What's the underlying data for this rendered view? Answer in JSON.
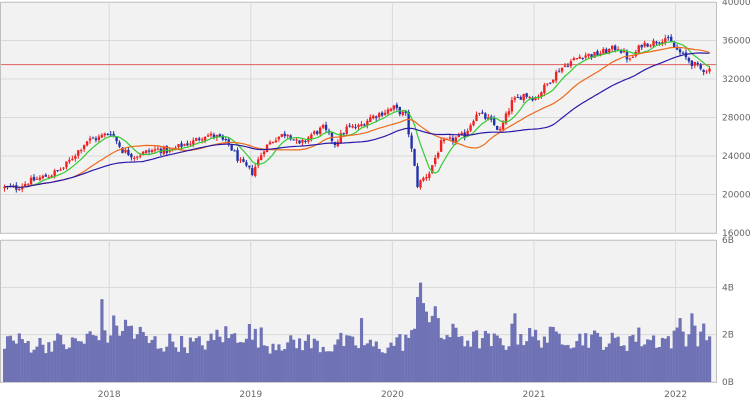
{
  "chart_data": [
    {
      "type": "candlestick",
      "panel": "price",
      "title": "",
      "xlabel": "",
      "ylabel": "",
      "ylim": [
        16000,
        40000
      ],
      "y_ticks": [
        16000,
        20000,
        24000,
        28000,
        32000,
        36000,
        40000
      ],
      "y_tick_labels": [
        "16000",
        "20000",
        "24000",
        "28000",
        "32000",
        "36000",
        "40000"
      ],
      "x_ticks": [
        "2018",
        "2019",
        "2020",
        "2021",
        "2022"
      ],
      "x_range": [
        "2017-04",
        "2022-03"
      ],
      "grid": true,
      "reference_line": {
        "value": 33500,
        "color": "#e06060"
      },
      "candles_per_month": 4,
      "monthly_close": [
        {
          "date": "2017-04",
          "close": 20700
        },
        {
          "date": "2017-05",
          "close": 20700
        },
        {
          "date": "2017-06",
          "close": 21300
        },
        {
          "date": "2017-07",
          "close": 21700
        },
        {
          "date": "2017-08",
          "close": 22100
        },
        {
          "date": "2017-09",
          "close": 22800
        },
        {
          "date": "2017-10",
          "close": 24200
        },
        {
          "date": "2017-11",
          "close": 25600
        },
        {
          "date": "2017-12",
          "close": 25900
        },
        {
          "date": "2018-01",
          "close": 26500
        },
        {
          "date": "2018-02",
          "close": 24600
        },
        {
          "date": "2018-03",
          "close": 24000
        },
        {
          "date": "2018-04",
          "close": 24400
        },
        {
          "date": "2018-05",
          "close": 24700
        },
        {
          "date": "2018-06",
          "close": 24500
        },
        {
          "date": "2018-07",
          "close": 25100
        },
        {
          "date": "2018-08",
          "close": 25500
        },
        {
          "date": "2018-09",
          "close": 26200
        },
        {
          "date": "2018-10",
          "close": 26000
        },
        {
          "date": "2018-11",
          "close": 25200
        },
        {
          "date": "2018-12",
          "close": 23300
        },
        {
          "date": "2019-01",
          "close": 22300
        },
        {
          "date": "2019-02",
          "close": 24800
        },
        {
          "date": "2019-03",
          "close": 25900
        },
        {
          "date": "2019-04",
          "close": 26400
        },
        {
          "date": "2019-05",
          "close": 25100
        },
        {
          "date": "2019-06",
          "close": 26200
        },
        {
          "date": "2019-07",
          "close": 26900
        },
        {
          "date": "2019-08",
          "close": 25300
        },
        {
          "date": "2019-09",
          "close": 26900
        },
        {
          "date": "2019-10",
          "close": 27000
        },
        {
          "date": "2019-11",
          "close": 28000
        },
        {
          "date": "2019-12",
          "close": 28500
        },
        {
          "date": "2020-01",
          "close": 29000
        },
        {
          "date": "2020-02",
          "close": 28200
        },
        {
          "date": "2020-03",
          "close": 21000
        },
        {
          "date": "2020-04",
          "close": 22300
        },
        {
          "date": "2020-05",
          "close": 25300
        },
        {
          "date": "2020-06",
          "close": 25700
        },
        {
          "date": "2020-07",
          "close": 26200
        },
        {
          "date": "2020-08",
          "close": 28500
        },
        {
          "date": "2020-09",
          "close": 27800
        },
        {
          "date": "2020-10",
          "close": 26600
        },
        {
          "date": "2020-11",
          "close": 29600
        },
        {
          "date": "2020-12",
          "close": 30400
        },
        {
          "date": "2021-01",
          "close": 30000
        },
        {
          "date": "2021-02",
          "close": 31500
        },
        {
          "date": "2021-03",
          "close": 33000
        },
        {
          "date": "2021-04",
          "close": 33800
        },
        {
          "date": "2021-05",
          "close": 34500
        },
        {
          "date": "2021-06",
          "close": 34500
        },
        {
          "date": "2021-07",
          "close": 34900
        },
        {
          "date": "2021-08",
          "close": 35300
        },
        {
          "date": "2021-09",
          "close": 33900
        },
        {
          "date": "2021-10",
          "close": 35600
        },
        {
          "date": "2021-11",
          "close": 35800
        },
        {
          "date": "2021-12",
          "close": 36300
        },
        {
          "date": "2022-01",
          "close": 35000
        },
        {
          "date": "2022-02",
          "close": 33900
        },
        {
          "date": "2022-03",
          "close": 33000
        }
      ],
      "series": [
        {
          "name": "",
          "kind": "moving-average",
          "window_months": 1,
          "color": "#33cc33"
        },
        {
          "name": "",
          "kind": "moving-average",
          "window_months": 3,
          "color": "#ee6a1a"
        },
        {
          "name": "",
          "kind": "moving-average",
          "window_months": 6,
          "color": "#2b1aa8"
        }
      ],
      "colors": {
        "up": "#ee2222",
        "down": "#2233aa"
      }
    },
    {
      "type": "bar",
      "panel": "volume",
      "title": "",
      "xlabel": "",
      "ylabel": "",
      "ylim": [
        0,
        6
      ],
      "y_ticks": [
        0,
        2,
        4,
        6
      ],
      "y_tick_labels": [
        "0B",
        "2B",
        "4B",
        "6B"
      ],
      "x_ticks": [
        "2018",
        "2019",
        "2020",
        "2021",
        "2022"
      ],
      "grid": true,
      "bar_color": "#6f73b6",
      "monthly_volume": [
        1.8,
        1.7,
        1.6,
        1.6,
        1.7,
        1.6,
        1.7,
        1.9,
        1.8,
        2.3,
        2.3,
        2.0,
        1.7,
        1.6,
        1.7,
        1.6,
        1.6,
        1.7,
        2.0,
        1.9,
        2.1,
        1.9,
        1.6,
        1.7,
        1.6,
        1.7,
        1.6,
        1.5,
        1.7,
        1.6,
        1.6,
        1.5,
        1.5,
        1.7,
        1.9,
        3.5,
        2.6,
        2.0,
        2.0,
        1.8,
        1.8,
        1.7,
        1.7,
        2.0,
        1.9,
        1.9,
        1.9,
        2.0,
        1.8,
        1.9,
        1.8,
        1.7,
        1.7,
        1.9,
        1.8,
        1.8,
        1.8,
        2.0,
        2.0,
        2.0
      ],
      "spikes": [
        {
          "date": "2017-12",
          "value": 3.5
        },
        {
          "date": "2019-10",
          "value": 2.7
        },
        {
          "date": "2020-03",
          "value": 4.2
        },
        {
          "date": "2020-11",
          "value": 2.9
        },
        {
          "date": "2022-01",
          "value": 2.7
        },
        {
          "date": "2022-02",
          "value": 2.9
        }
      ]
    }
  ]
}
